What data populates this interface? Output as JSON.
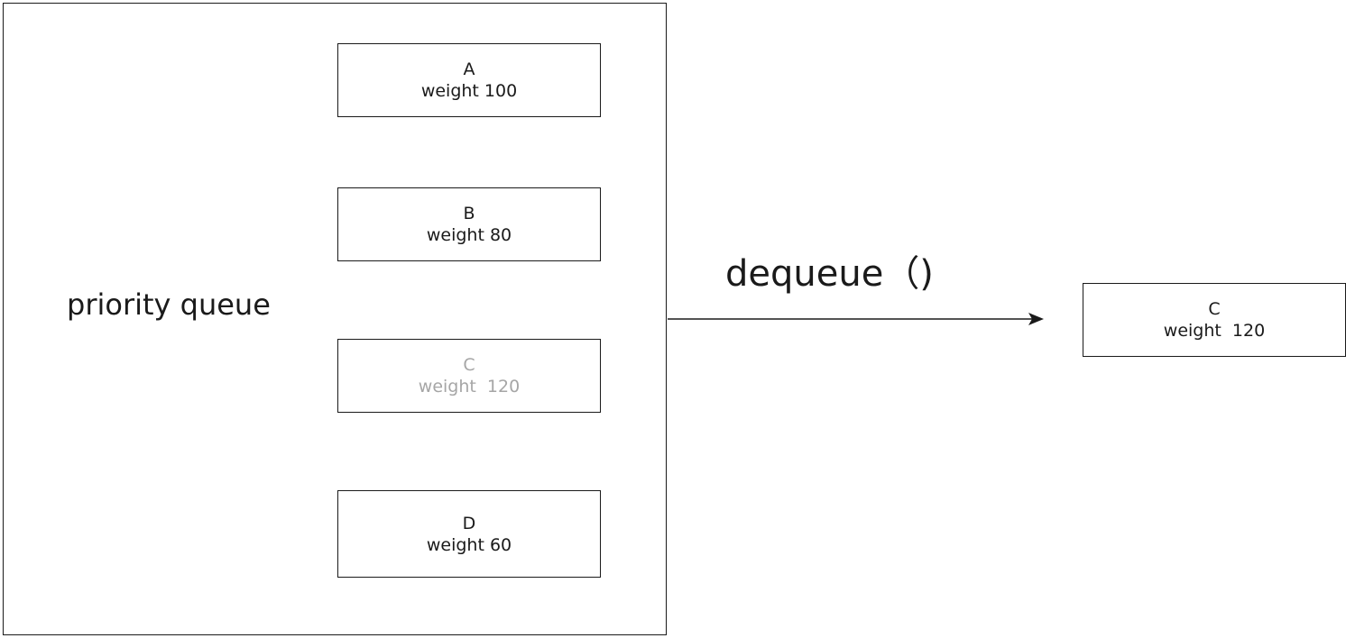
{
  "diagram": {
    "queue_label": "priority queue",
    "operation_label": "dequeue（)",
    "queue_items": [
      {
        "name": "A",
        "weight_text": "weight 100",
        "faded": false
      },
      {
        "name": "B",
        "weight_text": "weight 80",
        "faded": false
      },
      {
        "name": "C",
        "weight_text": "weight  120",
        "faded": true
      },
      {
        "name": "D",
        "weight_text": "weight 60",
        "faded": false
      }
    ],
    "output_item": {
      "name": "C",
      "weight_text": "weight  120"
    },
    "colors": {
      "stroke": "#1a1a1a",
      "faded_text": "#a6a6a6",
      "background": "#ffffff"
    }
  }
}
